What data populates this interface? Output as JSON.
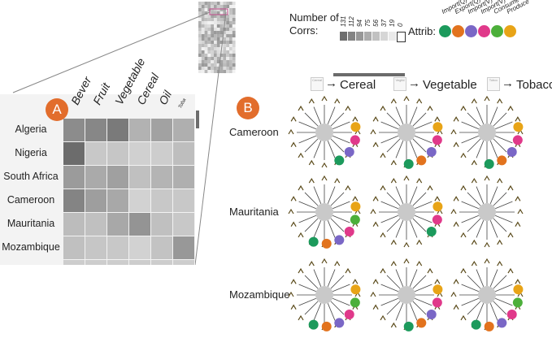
{
  "panel_a": {
    "badge": "A",
    "columns": [
      "Bever",
      "Fruit",
      "Vegetable",
      "Cereal",
      "Oil",
      "Toba"
    ],
    "rows": [
      "Algeria",
      "Nigeria",
      "South Africa",
      "Cameroon",
      "Mauritania",
      "Mozambique"
    ],
    "cells": [
      [
        140,
        135,
        122,
        178,
        162,
        175
      ],
      [
        108,
        200,
        198,
        208,
        205,
        190
      ],
      [
        155,
        170,
        160,
        192,
        180,
        175
      ],
      [
        132,
        158,
        168,
        210,
        200,
        200
      ],
      [
        188,
        192,
        168,
        148,
        192,
        200
      ],
      [
        192,
        198,
        200,
        210,
        195,
        152
      ]
    ]
  },
  "legend": {
    "title_line1": "Number of",
    "title_line2": "Corrs:",
    "values": [
      "131",
      "112",
      "94",
      "75",
      "56",
      "37",
      "19",
      "0"
    ],
    "attrib_label": "Attrib:",
    "attributes": [
      {
        "name": "Import(Q)",
        "color": "#1c9a5c"
      },
      {
        "name": "Export(Q)",
        "color": "#e2731e"
      },
      {
        "name": "Import(V)",
        "color": "#7a67c6"
      },
      {
        "name": "Import(V)",
        "color": "#e0398a"
      },
      {
        "name": "Consume",
        "color": "#4caf3a"
      },
      {
        "name": "Produce",
        "color": "#e8a417"
      }
    ]
  },
  "panel_b": {
    "badge": "B",
    "flow": [
      {
        "mini": "Cereal",
        "label": "Cereal"
      },
      {
        "mini": "Vegtbl",
        "label": "Vegetable"
      },
      {
        "mini": "Tobcc",
        "label": "Tobacco"
      }
    ],
    "rows": [
      "Cameroon",
      "Mauritania",
      "Mozambique"
    ],
    "glyphs": [
      [
        [
          "#e8a417",
          "#e0398a",
          "#7a67c6",
          "#1c9a5c"
        ],
        [
          "#e8a417",
          "#e0398a",
          "#7a67c6",
          "#e2731e",
          "#1c9a5c"
        ],
        [
          "#e8a417",
          "#e0398a",
          "#7a67c6",
          "#e2731e",
          "#1c9a5c"
        ]
      ],
      [
        [
          "#e8a417",
          "#4caf3a",
          "#e0398a",
          "#7a67c6",
          "#e2731e",
          "#1c9a5c"
        ],
        [
          "#e8a417",
          "#e0398a",
          "#1c9a5c"
        ],
        []
      ],
      [
        [
          "#e8a417",
          "#4caf3a",
          "#e0398a",
          "#7a67c6",
          "#e2731e",
          "#1c9a5c"
        ],
        [
          "#e8a417",
          "#e0398a",
          "#7a67c6",
          "#e2731e",
          "#1c9a5c"
        ],
        [
          "#e8a417",
          "#4caf3a",
          "#e0398a",
          "#7a67c6",
          "#e2731e",
          "#1c9a5c"
        ]
      ]
    ]
  }
}
